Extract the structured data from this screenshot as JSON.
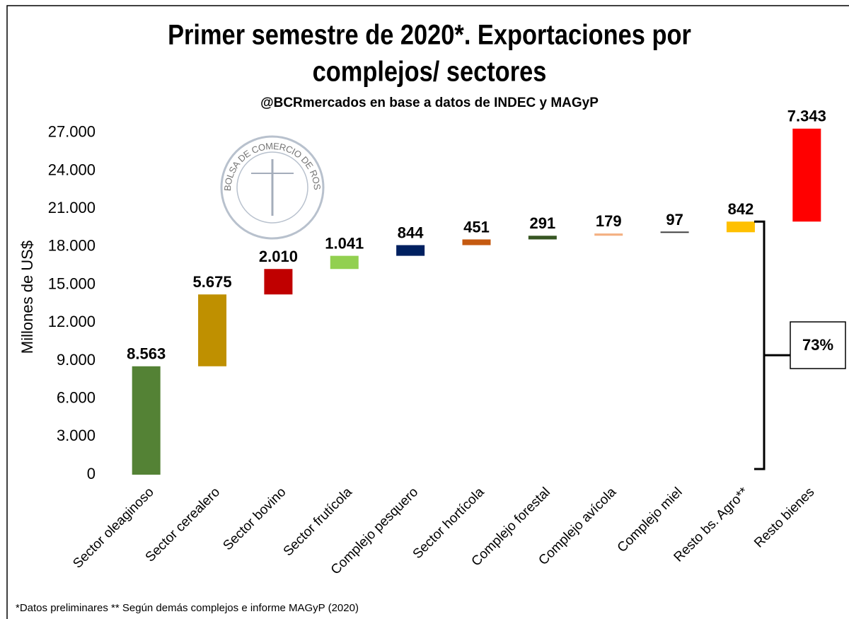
{
  "chart_data": {
    "type": "waterfall",
    "title": [
      "Primer semestre de 2020*. Exportaciones por",
      "complejos/ sectores"
    ],
    "subtitle": "@BCRmercados en base a datos de INDEC y MAGyP",
    "y_label": "Millones de US$",
    "footnote": "*Datos preliminares ** Según demás complejos e informe MAGyP (2020)",
    "logo_text": "BOLSA DE COMERCIO DE ROSARIO",
    "annotation": "73%",
    "categories": [
      "Sector oleaginoso",
      "Sector cerealero",
      "Sector bovino",
      "Sector frutícola",
      "Complejo pesquero",
      "Sector hortícola",
      "Complejo forestal",
      "Complejo avícola",
      "Complejo miel",
      "Resto bs. Agro**",
      "Resto bienes"
    ],
    "values": [
      8563,
      5675,
      2010,
      1041,
      844,
      451,
      291,
      179,
      97,
      842,
      7343
    ],
    "value_labels": [
      "8.563",
      "5.675",
      "2.010",
      "1.041",
      "844",
      "451",
      "291",
      "179",
      "97",
      "842",
      "7.343"
    ],
    "colors": [
      "#548235",
      "#bf9000",
      "#c00000",
      "#92d050",
      "#002060",
      "#c55a11",
      "#375623",
      "#f4b183",
      "#404040",
      "#ffc000",
      "#ff0000"
    ],
    "ylim": [
      0,
      28500
    ],
    "yticks": [
      0,
      {
        "value": 3000,
        "label": "3.000"
      },
      {
        "value": 6000,
        "label": "6.000"
      },
      {
        "value": 9000,
        "label": "9.000"
      },
      {
        "value": 12000,
        "label": "12.000"
      },
      {
        "value": 15000,
        "label": "15.000"
      },
      {
        "value": 18000,
        "label": "18.000"
      },
      {
        "value": 21000,
        "label": "21.000"
      },
      {
        "value": 24000,
        "label": "24.000"
      },
      {
        "value": 27000,
        "label": "27.000"
      }
    ],
    "grid": false
  }
}
